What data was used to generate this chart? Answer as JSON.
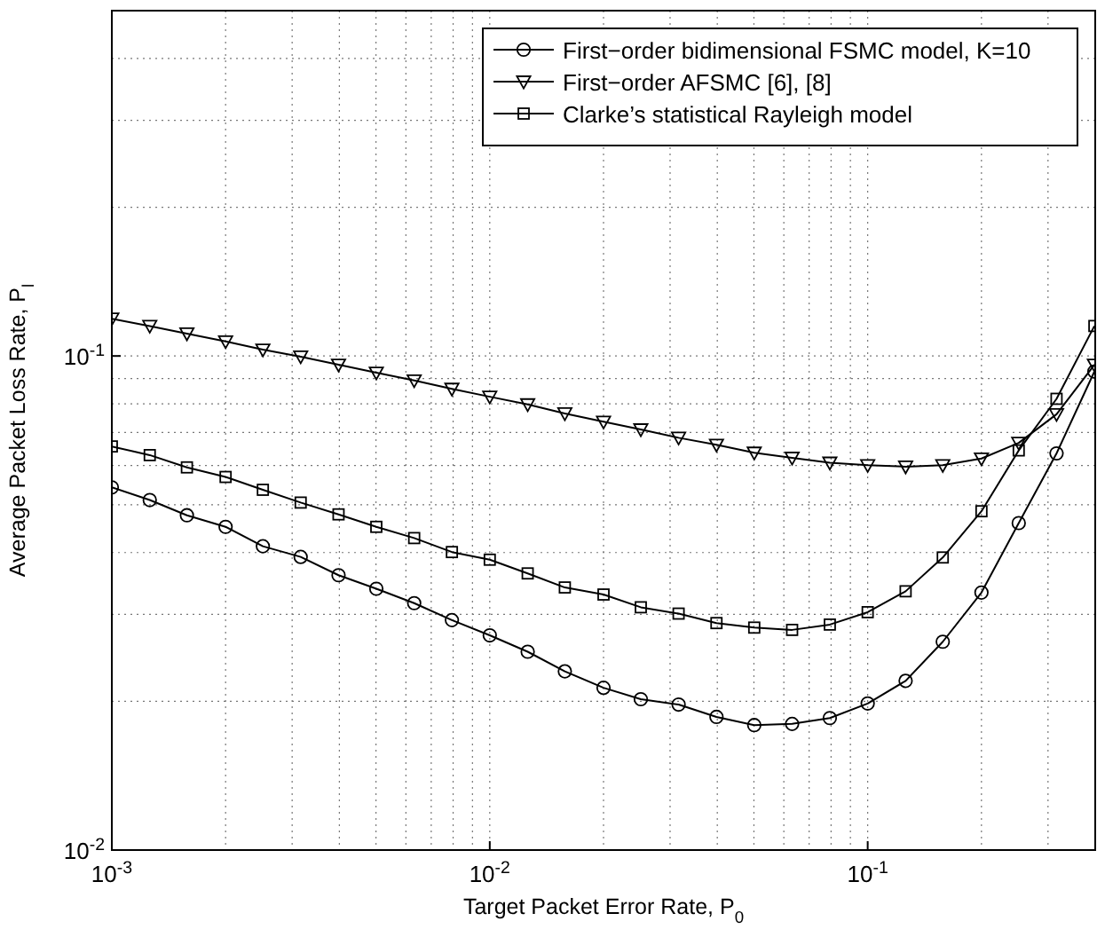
{
  "chart_data": {
    "type": "line",
    "xlabel": "Target Packet Error Rate, P$_{0}$",
    "ylabel": "Average Packet Loss Rate, P$_{l}$",
    "log": "xy",
    "grid": true,
    "legend": "top right",
    "line_style": "solid",
    "x": [
      0.001,
      0.00126,
      0.00158,
      0.002,
      0.00251,
      0.00316,
      0.00398,
      0.00501,
      0.00631,
      0.00794,
      0.01,
      0.0126,
      0.0158,
      0.02,
      0.0251,
      0.0316,
      0.0398,
      0.0501,
      0.0631,
      0.0794,
      0.1,
      0.126,
      0.158,
      0.2,
      0.251,
      0.316,
      0.398
    ],
    "xlim": [
      0.001,
      0.4
    ],
    "ylim": [
      0.01,
      0.5
    ],
    "xticks": [
      {
        "value": 0.001,
        "label": "10$^{-3}$"
      },
      {
        "value": 0.01,
        "label": "10$^{-2}$"
      },
      {
        "value": 0.1,
        "label": "10$^{-1}$"
      }
    ],
    "yticks": [
      {
        "value": 0.01,
        "label": "10$^{-2}$"
      },
      {
        "value": 0.1,
        "label": "10$^{-1}$"
      }
    ],
    "series": [
      {
        "name": "First−order bidimensional FSMC model, K=10",
        "color": "#000000",
        "marker": "circle",
        "values": [
          0.0542,
          0.0511,
          0.0476,
          0.0451,
          0.0412,
          0.0392,
          0.036,
          0.0338,
          0.0316,
          0.0292,
          0.0272,
          0.0252,
          0.023,
          0.0213,
          0.0202,
          0.0197,
          0.0186,
          0.0179,
          0.018,
          0.0185,
          0.0198,
          0.022,
          0.0264,
          0.0332,
          0.0459,
          0.0635,
          0.093
        ]
      },
      {
        "name": "First−order AFSMC [6], [8]",
        "color": "#000000",
        "marker": "triangle",
        "values": [
          0.119,
          0.115,
          0.111,
          0.107,
          0.103,
          0.0997,
          0.096,
          0.0925,
          0.0892,
          0.0858,
          0.0827,
          0.0798,
          0.0765,
          0.0736,
          0.071,
          0.0683,
          0.0661,
          0.0637,
          0.0622,
          0.0608,
          0.0601,
          0.0597,
          0.0601,
          0.062,
          0.0667,
          0.0762,
          0.096
        ]
      },
      {
        "name": "Clarke’s statistical Rayleigh model",
        "color": "#000000",
        "marker": "square",
        "values": [
          0.0656,
          0.063,
          0.0595,
          0.0569,
          0.0536,
          0.0505,
          0.0478,
          0.0451,
          0.0428,
          0.0401,
          0.0387,
          0.0363,
          0.034,
          0.0329,
          0.031,
          0.0301,
          0.0288,
          0.0282,
          0.0279,
          0.0286,
          0.0303,
          0.0334,
          0.0391,
          0.0485,
          0.0644,
          0.0819,
          0.115
        ]
      }
    ]
  }
}
